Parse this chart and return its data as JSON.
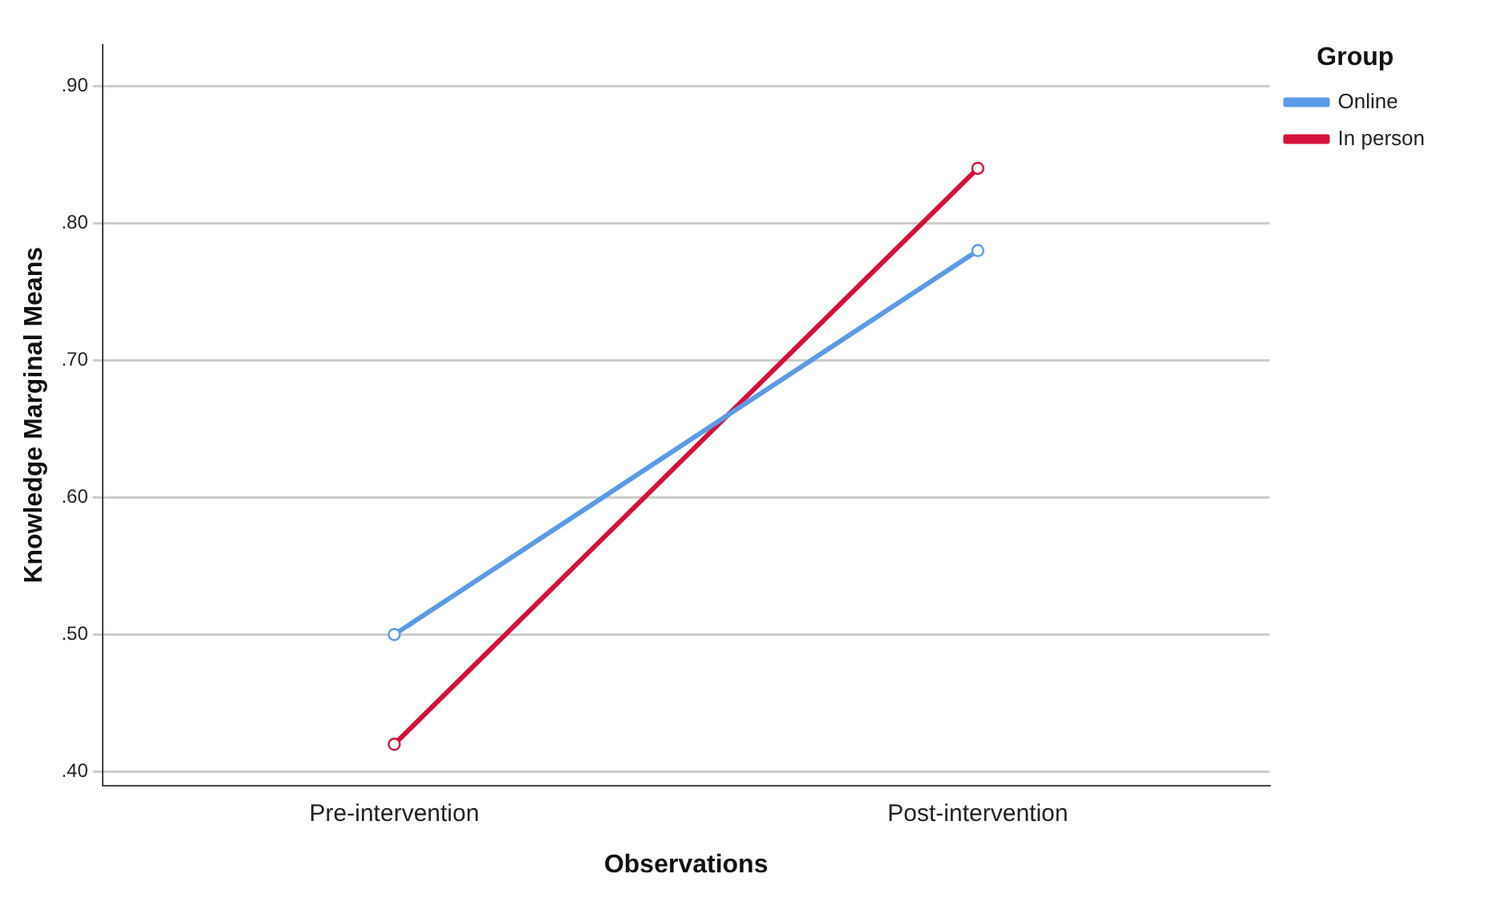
{
  "chart_data": {
    "type": "line",
    "xlabel": "Observations",
    "ylabel": "Knowledge Marginal Means",
    "legend_title": "Group",
    "categories": [
      "Pre-intervention",
      "Post-intervention"
    ],
    "series": [
      {
        "name": "Online",
        "color": "#5b9be6",
        "values": [
          0.5,
          0.78
        ]
      },
      {
        "name": "In person",
        "color": "#d5103a",
        "values": [
          0.42,
          0.84
        ]
      }
    ],
    "ylim": [
      0.39,
      0.93
    ],
    "yticks": [
      {
        "value": 0.4,
        "label": ".40"
      },
      {
        "value": 0.5,
        "label": ".50"
      },
      {
        "value": 0.6,
        "label": ".60"
      },
      {
        "value": 0.7,
        "label": ".70"
      },
      {
        "value": 0.8,
        "label": ".80"
      },
      {
        "value": 0.9,
        "label": ".90"
      }
    ],
    "grid": "y",
    "legend": "top right",
    "marker": "circle",
    "line_style": "solid"
  }
}
